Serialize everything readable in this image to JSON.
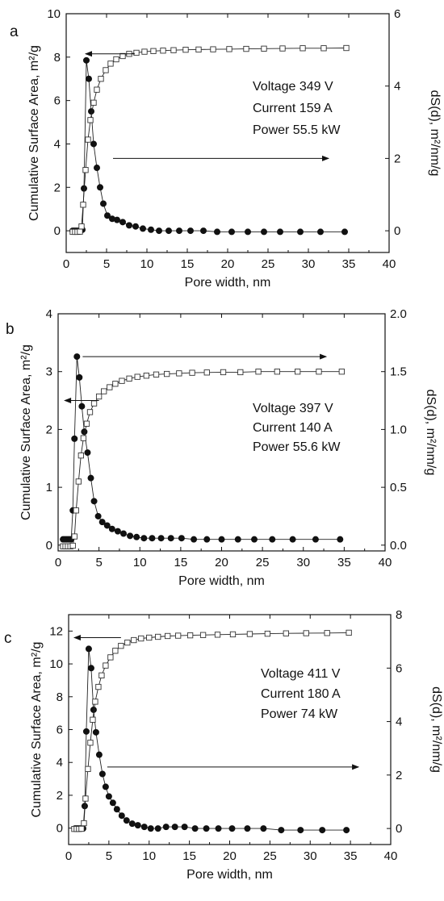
{
  "chart_data": [
    {
      "type": "line",
      "panel_label": "a",
      "xlabel": "Pore width, nm",
      "ylabel_left": "Cumulative Surface Area, m²/g",
      "ylabel_right": "dS(d), m²/nm/g",
      "xlim": [
        0,
        40
      ],
      "ylim_left": [
        -1,
        10
      ],
      "ylim_right": [
        -0.6,
        6
      ],
      "x_ticks": [
        "0",
        "5",
        "10",
        "15",
        "20",
        "25",
        "30",
        "35",
        "40"
      ],
      "y_left_ticks": [
        "0",
        "2",
        "4",
        "6",
        "8",
        "10"
      ],
      "y_right_ticks": [
        "0",
        "2",
        "4",
        "6"
      ],
      "annotation_lines": [
        "Voltage 349 V",
        "Current 159 A",
        "Power 55.5 kW"
      ],
      "series": [
        {
          "axis": "right",
          "marker": "filled-circle",
          "x": [
            0.8,
            1.0,
            1.2,
            1.4,
            1.6,
            1.8,
            2.0,
            2.2,
            2.5,
            2.8,
            3.1,
            3.4,
            3.8,
            4.2,
            4.6,
            5.1,
            5.7,
            6.3,
            7.0,
            7.8,
            8.6,
            9.5,
            10.5,
            11.5,
            12.7,
            14.0,
            15.4,
            17.0,
            18.7,
            20.5,
            22.5,
            24.5,
            26.5,
            29.0,
            31.5,
            34.5
          ],
          "values": [
            0.0,
            0.0,
            0.0,
            0.0,
            0.0,
            0.0,
            0.03,
            1.17,
            4.71,
            4.2,
            3.3,
            2.4,
            1.74,
            1.2,
            0.75,
            0.42,
            0.33,
            0.3,
            0.24,
            0.15,
            0.12,
            0.06,
            0.03,
            0.0,
            0.0,
            0.0,
            0.0,
            0.0,
            -0.03,
            -0.03,
            -0.03,
            -0.03,
            -0.03,
            -0.03,
            -0.03,
            -0.03
          ]
        },
        {
          "axis": "left",
          "marker": "open-square",
          "x": [
            0.8,
            1.1,
            1.4,
            1.7,
            1.9,
            2.1,
            2.4,
            2.7,
            3.0,
            3.4,
            3.8,
            4.3,
            4.9,
            5.5,
            6.2,
            7.0,
            7.8,
            8.7,
            9.7,
            10.8,
            12.0,
            13.3,
            14.8,
            16.4,
            18.2,
            20.2,
            22.3,
            24.5,
            26.8,
            29.3,
            31.9,
            34.7
          ],
          "values": [
            -0.05,
            -0.05,
            -0.05,
            -0.04,
            0.2,
            1.2,
            2.8,
            4.2,
            5.1,
            5.9,
            6.5,
            7.0,
            7.4,
            7.7,
            7.9,
            8.05,
            8.15,
            8.2,
            8.25,
            8.28,
            8.3,
            8.32,
            8.34,
            8.35,
            8.36,
            8.37,
            8.38,
            8.39,
            8.4,
            8.41,
            8.41,
            8.42
          ]
        }
      ]
    },
    {
      "type": "line",
      "panel_label": "b",
      "xlabel": "Pore width, nm",
      "ylabel_left": "Cumulative Surface Area, m²/g",
      "ylabel_right": "dS(d), m²/nm/g",
      "xlim": [
        0,
        40
      ],
      "ylim_left": [
        -0.1,
        4
      ],
      "ylim_right": [
        -0.05,
        2
      ],
      "x_ticks": [
        "0",
        "5",
        "10",
        "15",
        "20",
        "25",
        "30",
        "35",
        "40"
      ],
      "y_left_ticks": [
        "0",
        "1",
        "2",
        "3",
        "4"
      ],
      "y_right_ticks": [
        "0.0",
        "0.5",
        "1.0",
        "1.5",
        "2.0"
      ],
      "annotation_lines": [
        "Voltage 397 V",
        "Current 140 A",
        "Power 55.6 kW"
      ],
      "series": [
        {
          "axis": "right",
          "marker": "filled-circle",
          "x": [
            0.6,
            0.8,
            1.0,
            1.2,
            1.4,
            1.6,
            1.8,
            2.0,
            2.3,
            2.6,
            2.9,
            3.2,
            3.6,
            4.0,
            4.4,
            4.9,
            5.4,
            6.0,
            6.6,
            7.3,
            8.0,
            8.8,
            9.6,
            10.5,
            11.5,
            12.6,
            13.8,
            15.1,
            16.6,
            18.2,
            20.0,
            22.0,
            24.0,
            26.2,
            28.7,
            31.5,
            34.5
          ],
          "values": [
            0.05,
            0.05,
            0.05,
            0.05,
            0.05,
            0.05,
            0.3,
            0.92,
            1.63,
            1.45,
            1.2,
            0.98,
            0.8,
            0.58,
            0.38,
            0.25,
            0.2,
            0.17,
            0.14,
            0.12,
            0.1,
            0.08,
            0.07,
            0.06,
            0.06,
            0.06,
            0.06,
            0.06,
            0.05,
            0.05,
            0.05,
            0.05,
            0.05,
            0.05,
            0.05,
            0.05,
            0.05
          ]
        },
        {
          "axis": "left",
          "marker": "open-square",
          "x": [
            0.6,
            0.9,
            1.2,
            1.5,
            1.8,
            2.0,
            2.2,
            2.5,
            2.8,
            3.1,
            3.5,
            3.9,
            4.4,
            5.0,
            5.6,
            6.3,
            7.0,
            7.8,
            8.7,
            9.7,
            10.8,
            12.0,
            13.3,
            14.8,
            16.4,
            18.2,
            20.2,
            22.3,
            24.5,
            26.8,
            29.3,
            31.9,
            34.7
          ],
          "values": [
            -0.02,
            -0.02,
            -0.02,
            -0.02,
            -0.01,
            0.15,
            0.6,
            1.1,
            1.55,
            1.85,
            2.1,
            2.3,
            2.45,
            2.57,
            2.66,
            2.73,
            2.79,
            2.84,
            2.88,
            2.91,
            2.93,
            2.95,
            2.96,
            2.97,
            2.98,
            2.985,
            2.99,
            2.99,
            3.0,
            3.0,
            3.0,
            3.0,
            3.0
          ]
        }
      ]
    },
    {
      "type": "line",
      "panel_label": "c",
      "xlabel": "Pore width, nm",
      "ylabel_left": "Cumulative Surface Area, m²/g",
      "ylabel_right": "dS(d), m²/nm/g",
      "xlim": [
        0,
        40
      ],
      "ylim_left": [
        -1,
        13
      ],
      "ylim_right": [
        -0.6,
        8
      ],
      "x_ticks": [
        "0",
        "5",
        "10",
        "15",
        "20",
        "25",
        "30",
        "35",
        "40"
      ],
      "y_left_ticks": [
        "0",
        "2",
        "4",
        "6",
        "8",
        "10",
        "12"
      ],
      "y_right_ticks": [
        "0",
        "2",
        "4",
        "6",
        "8"
      ],
      "annotation_lines": [
        "Voltage 411 V",
        "Current 180 A",
        "Power 74 kW"
      ],
      "series": [
        {
          "axis": "right",
          "marker": "filled-circle",
          "x": [
            0.8,
            1.0,
            1.2,
            1.4,
            1.6,
            1.8,
            2.0,
            2.2,
            2.5,
            2.8,
            3.1,
            3.4,
            3.8,
            4.2,
            4.6,
            5.0,
            5.5,
            6.0,
            6.6,
            7.2,
            7.9,
            8.6,
            9.4,
            10.2,
            11.1,
            12.1,
            13.2,
            14.4,
            15.7,
            17.1,
            18.6,
            20.3,
            22.2,
            24.2,
            26.4,
            28.8,
            31.5,
            34.5
          ],
          "values": [
            0.0,
            0.0,
            0.0,
            0.0,
            0.0,
            0.0,
            0.84,
            3.63,
            6.72,
            6.0,
            4.44,
            3.6,
            2.76,
            2.04,
            1.56,
            1.2,
            0.96,
            0.72,
            0.48,
            0.3,
            0.18,
            0.12,
            0.06,
            0.0,
            0.0,
            0.06,
            0.06,
            0.06,
            0.0,
            0.0,
            0.0,
            0.0,
            0.0,
            0.0,
            -0.06,
            -0.06,
            -0.06,
            -0.06
          ]
        },
        {
          "axis": "left",
          "marker": "open-square",
          "x": [
            0.7,
            1.0,
            1.3,
            1.6,
            1.9,
            2.1,
            2.4,
            2.7,
            3.0,
            3.3,
            3.7,
            4.1,
            4.6,
            5.2,
            5.8,
            6.5,
            7.3,
            8.1,
            9.0,
            10.0,
            11.1,
            12.3,
            13.6,
            15.1,
            16.7,
            18.5,
            20.4,
            22.5,
            24.7,
            27.0,
            29.5,
            32.1,
            34.8
          ],
          "values": [
            -0.05,
            -0.05,
            -0.05,
            -0.04,
            0.3,
            1.8,
            3.6,
            5.2,
            6.6,
            7.7,
            8.6,
            9.3,
            9.9,
            10.4,
            10.8,
            11.1,
            11.3,
            11.45,
            11.55,
            11.6,
            11.65,
            11.7,
            11.72,
            11.74,
            11.76,
            11.78,
            11.8,
            11.82,
            11.84,
            11.86,
            11.87,
            11.88,
            11.9
          ]
        }
      ]
    }
  ]
}
